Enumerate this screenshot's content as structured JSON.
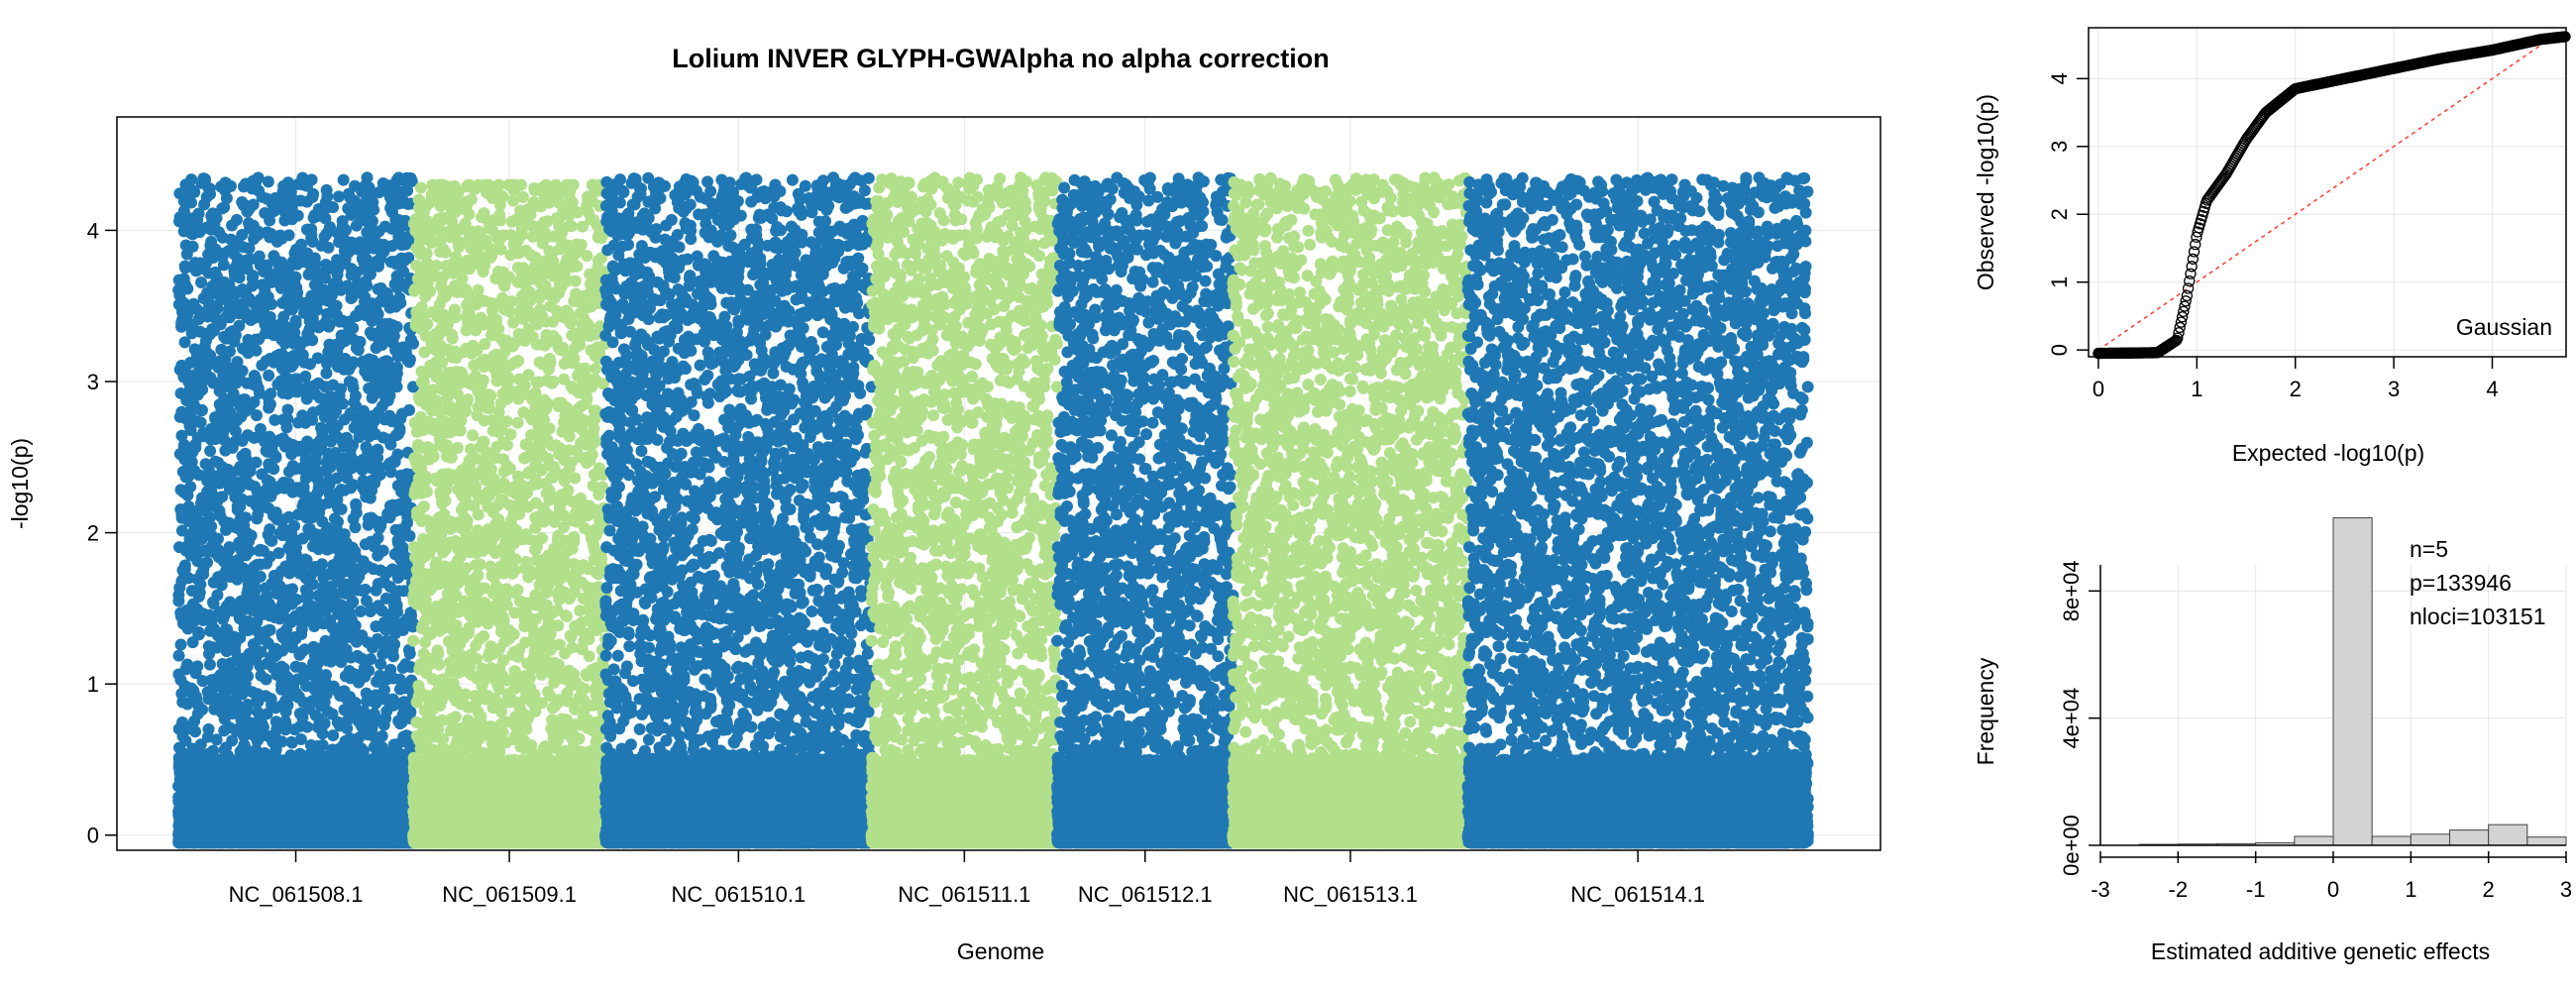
{
  "chart_data": [
    {
      "type": "scatter",
      "title": "Lolium INVER GLYPH-GWAlpha no alpha correction",
      "xlabel": "Genome",
      "ylabel": "-log10(p)",
      "ylim": [
        -0.1,
        4.75
      ],
      "yticks": [
        "0",
        "1",
        "2",
        "3",
        "4"
      ],
      "grid": true,
      "colors": [
        "#1f78b4",
        "#b2df8a"
      ],
      "chromosomes": [
        {
          "name": "NC_061508.1",
          "start": 0.0,
          "end": 0.143,
          "color": "#1f78b4",
          "dense_max": 4.5
        },
        {
          "name": "NC_061509.1",
          "start": 0.143,
          "end": 0.26,
          "color": "#b2df8a",
          "dense_max": 4.3
        },
        {
          "name": "NC_061510.1",
          "start": 0.26,
          "end": 0.422,
          "color": "#1f78b4",
          "dense_max": 4.65
        },
        {
          "name": "NC_061511.1",
          "start": 0.422,
          "end": 0.535,
          "color": "#b2df8a",
          "dense_max": 4.5
        },
        {
          "name": "NC_061512.1",
          "start": 0.535,
          "end": 0.642,
          "color": "#1f78b4",
          "dense_max": 4.65
        },
        {
          "name": "NC_061513.1",
          "start": 0.642,
          "end": 0.785,
          "color": "#b2df8a",
          "dense_max": 4.6
        },
        {
          "name": "NC_061514.1",
          "start": 0.785,
          "end": 0.992,
          "color": "#1f78b4",
          "dense_max": 4.5
        }
      ],
      "tick_labels": [
        "NC_061508.1",
        "NC_061509.1",
        "NC_061510.1",
        "NC_061511.1",
        "NC_061512.1",
        "NC_061513.1",
        "NC_061514.1"
      ]
    },
    {
      "type": "scatter",
      "xlabel": "Expected -log10(p)",
      "ylabel": "Observed -log10(p)",
      "xlim": [
        -0.1,
        4.75
      ],
      "ylim": [
        -0.1,
        4.75
      ],
      "xticks": [
        "0",
        "1",
        "2",
        "3",
        "4"
      ],
      "yticks": [
        "0",
        "1",
        "2",
        "3",
        "4"
      ],
      "annotation": "Gaussian",
      "reference_line": "y = x (red dashed)",
      "curve": [
        [
          0.0,
          -0.05
        ],
        [
          0.6,
          -0.04
        ],
        [
          0.8,
          0.15
        ],
        [
          0.9,
          0.8
        ],
        [
          1.0,
          1.7
        ],
        [
          1.1,
          2.2
        ],
        [
          1.3,
          2.6
        ],
        [
          1.5,
          3.1
        ],
        [
          1.7,
          3.5
        ],
        [
          2.0,
          3.85
        ],
        [
          2.5,
          4.0
        ],
        [
          3.0,
          4.15
        ],
        [
          3.5,
          4.3
        ],
        [
          4.0,
          4.42
        ],
        [
          4.5,
          4.58
        ],
        [
          4.75,
          4.62
        ]
      ]
    },
    {
      "type": "bar",
      "xlabel": "Estimated additive genetic effects",
      "ylabel": "Frequency",
      "xlim": [
        -3,
        3
      ],
      "ylim": [
        0,
        96000
      ],
      "xticks": [
        "-3",
        "-2",
        "-1",
        "0",
        "1",
        "2",
        "3"
      ],
      "yticks": [
        "0e+00",
        "4e+04",
        "8e+04"
      ],
      "bins": [
        {
          "x0": -2.5,
          "x1": -2.0,
          "value": 300
        },
        {
          "x0": -2.0,
          "x1": -1.5,
          "value": 400
        },
        {
          "x0": -1.5,
          "x1": -1.0,
          "value": 500
        },
        {
          "x0": -1.0,
          "x1": -0.5,
          "value": 800
        },
        {
          "x0": -0.5,
          "x1": 0.0,
          "value": 2800
        },
        {
          "x0": 0.0,
          "x1": 0.5,
          "value": 103000
        },
        {
          "x0": 0.5,
          "x1": 1.0,
          "value": 2800
        },
        {
          "x0": 1.0,
          "x1": 1.5,
          "value": 3500
        },
        {
          "x0": 1.5,
          "x1": 2.0,
          "value": 4800
        },
        {
          "x0": 2.0,
          "x1": 2.5,
          "value": 6500
        },
        {
          "x0": 2.5,
          "x1": 3.0,
          "value": 2600
        }
      ],
      "annotations": [
        "n=5",
        "p=133946",
        "nloci=103151"
      ]
    }
  ]
}
